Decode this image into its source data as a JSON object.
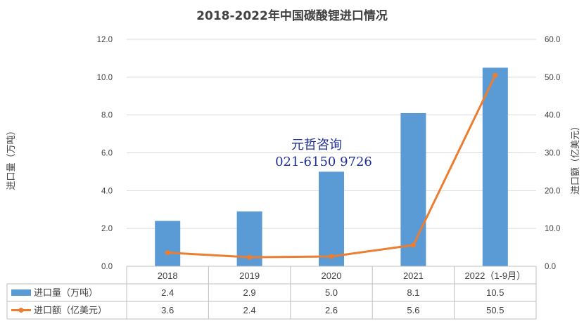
{
  "chart_data": {
    "type": "bar",
    "title": "2018-2022年中国碳酸锂进口情况",
    "categories": [
      "2018",
      "2019",
      "2020",
      "2021",
      "2022（1-9月）"
    ],
    "series": [
      {
        "name": "进口量（万吨）",
        "type": "bar",
        "axis": "left",
        "color": "#5b9bd5",
        "values": [
          2.4,
          2.9,
          5.0,
          8.1,
          10.5
        ],
        "labels": [
          "2.4",
          "2.9",
          "5.0",
          "8.1",
          "10.5"
        ]
      },
      {
        "name": "进口额（亿美元）",
        "type": "line",
        "axis": "right",
        "color": "#ed7d31",
        "values": [
          3.6,
          2.4,
          2.6,
          5.6,
          50.5
        ],
        "labels": [
          "3.6",
          "2.4",
          "2.6",
          "5.6",
          "50.5"
        ]
      }
    ],
    "ylabel": "进口量（万吨）",
    "y2label": "进口额（亿美元）",
    "ylim": [
      0,
      12
    ],
    "y2lim": [
      0,
      60
    ],
    "yticks": [
      "0.0",
      "2.0",
      "4.0",
      "6.0",
      "8.0",
      "10.0",
      "12.0"
    ],
    "y2ticks": [
      "0.0",
      "10.0",
      "20.0",
      "30.0",
      "40.0",
      "50.0",
      "60.0"
    ],
    "grid": true,
    "legend": "data-table",
    "watermark": [
      "元哲咨询",
      "021-6150 9726"
    ]
  }
}
